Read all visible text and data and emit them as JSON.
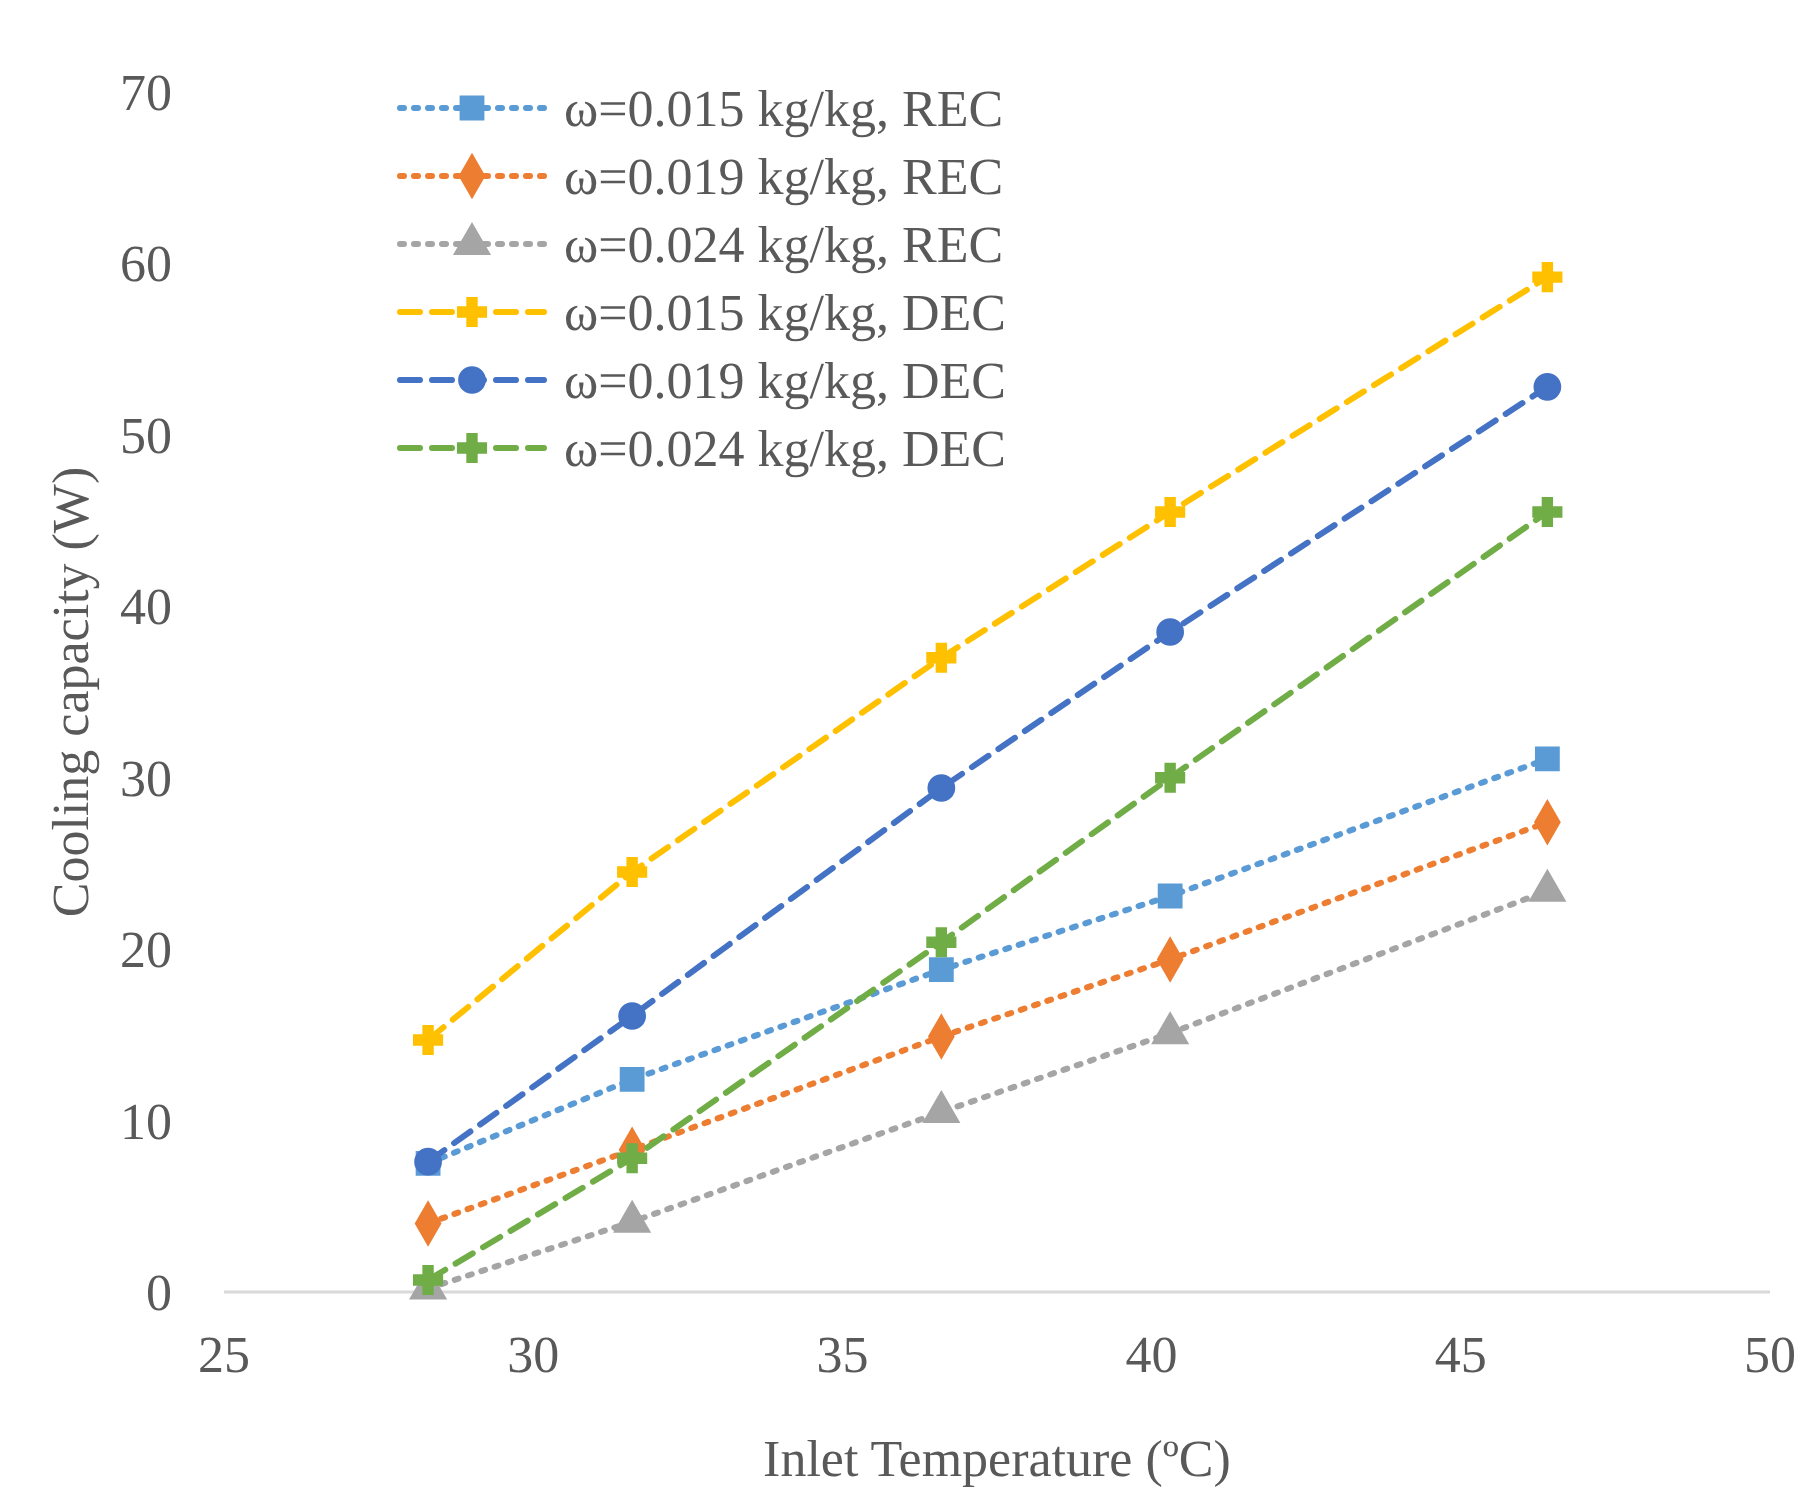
{
  "chart_data": {
    "type": "line",
    "xlabel": "Inlet Temperature (ºC)",
    "ylabel": "Cooling capacity (W)",
    "x": [
      28.3,
      31.6,
      36.6,
      40.3,
      46.4
    ],
    "xlim": [
      25,
      50
    ],
    "xticks": [
      25,
      30,
      35,
      40,
      45,
      50
    ],
    "ylim": [
      0,
      70
    ],
    "yticks": [
      0,
      10,
      20,
      30,
      40,
      50,
      60,
      70
    ],
    "grid": false,
    "legend": "top left",
    "series": [
      {
        "name": "ω=0.015 kg/kg, REC",
        "color": "#5b9bd5",
        "marker": "square",
        "line_style": "dotted",
        "values": [
          7.5,
          12.4,
          18.8,
          23.1,
          31.1
        ]
      },
      {
        "name": "ω=0.019 kg/kg, REC",
        "color": "#ed7d31",
        "marker": "diamond",
        "line_style": "dotted",
        "values": [
          4.0,
          8.3,
          14.9,
          19.4,
          27.4
        ]
      },
      {
        "name": "ω=0.024 kg/kg, REC",
        "color": "#a5a5a5",
        "marker": "triangle",
        "line_style": "dotted",
        "values": [
          0.2,
          4.1,
          10.5,
          15.1,
          23.4
        ]
      },
      {
        "name": "ω=0.015 kg/kg, DEC",
        "color": "#ffc000",
        "marker": "cross",
        "line_style": "dashed",
        "values": [
          14.7,
          24.5,
          37.0,
          45.5,
          59.2
        ]
      },
      {
        "name": "ω=0.019 kg/kg, DEC",
        "color": "#4472c4",
        "marker": "circle",
        "line_style": "dashed",
        "values": [
          7.6,
          16.1,
          29.4,
          38.5,
          52.8
        ]
      },
      {
        "name": "ω=0.024 kg/kg, DEC",
        "color": "#70ad47",
        "marker": "cross",
        "line_style": "dashed",
        "values": [
          0.7,
          7.8,
          20.4,
          30.0,
          45.5
        ]
      }
    ]
  }
}
